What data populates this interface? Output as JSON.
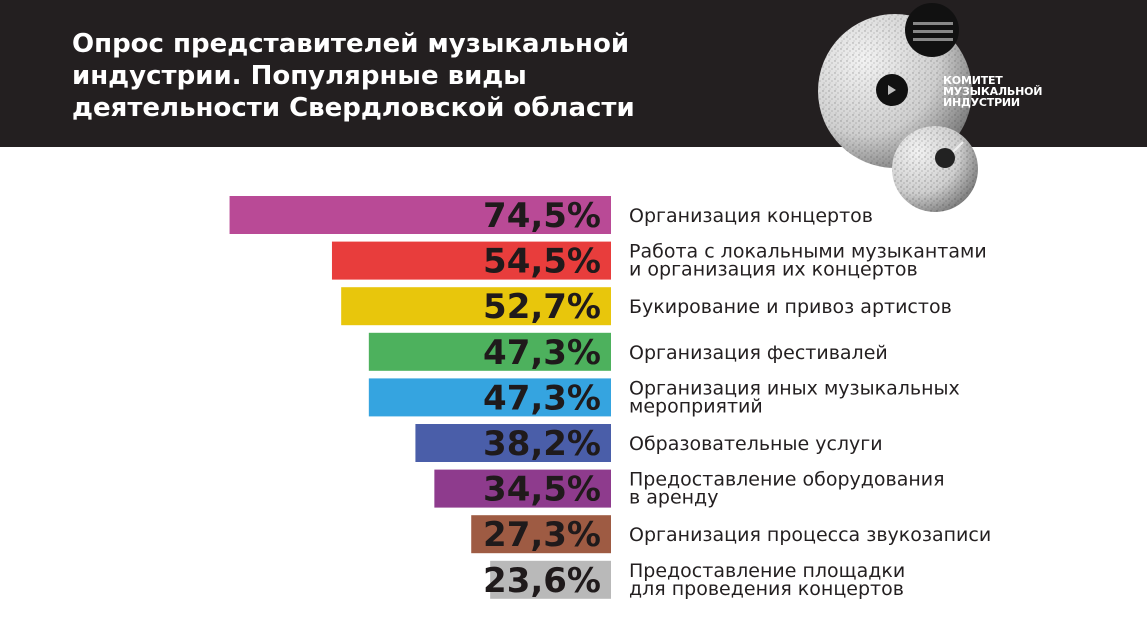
{
  "header": {
    "title_lines": [
      "Опрос представителей музыкальной",
      "индустрии. Популярные виды",
      "деятельности Свердловской области"
    ],
    "logo_lines": [
      "КОМИТЕТ",
      "МУЗЫКАЛЬНОЙ",
      "ИНДУСТРИИ"
    ]
  },
  "chart_data": {
    "type": "bar",
    "orientation": "horizontal",
    "title": "Опрос представителей музыкальной индустрии. Популярные виды деятельности Свердловской области",
    "xlim": [
      0,
      100
    ],
    "grid": false,
    "categories": [
      [
        "Организация концертов"
      ],
      [
        "Работа с локальными музыкантами",
        "и организация их концертов"
      ],
      [
        "Букирование и привоз артистов"
      ],
      [
        "Организация фестивалей"
      ],
      [
        "Организация иных музыкальных",
        "мероприятий"
      ],
      [
        "Образовательные услуги"
      ],
      [
        "Предоставление оборудования",
        "в аренду"
      ],
      [
        "Организация процесса звукозаписи"
      ],
      [
        "Предоставление площадки",
        "для проведения концертов"
      ]
    ],
    "values": [
      74.5,
      54.5,
      52.7,
      47.3,
      47.3,
      38.2,
      34.5,
      27.3,
      23.6
    ],
    "data_labels": [
      "74,5%",
      "54,5%",
      "52,7%",
      "47,3%",
      "47,3%",
      "38,2%",
      "34,5%",
      "27,3%",
      "23,6%"
    ],
    "colors": [
      "#b94a96",
      "#e83d3c",
      "#e8c60c",
      "#4db15d",
      "#35a4e0",
      "#4a5ea9",
      "#8e3b8d",
      "#9e5b43",
      "#b9b9b9"
    ]
  }
}
